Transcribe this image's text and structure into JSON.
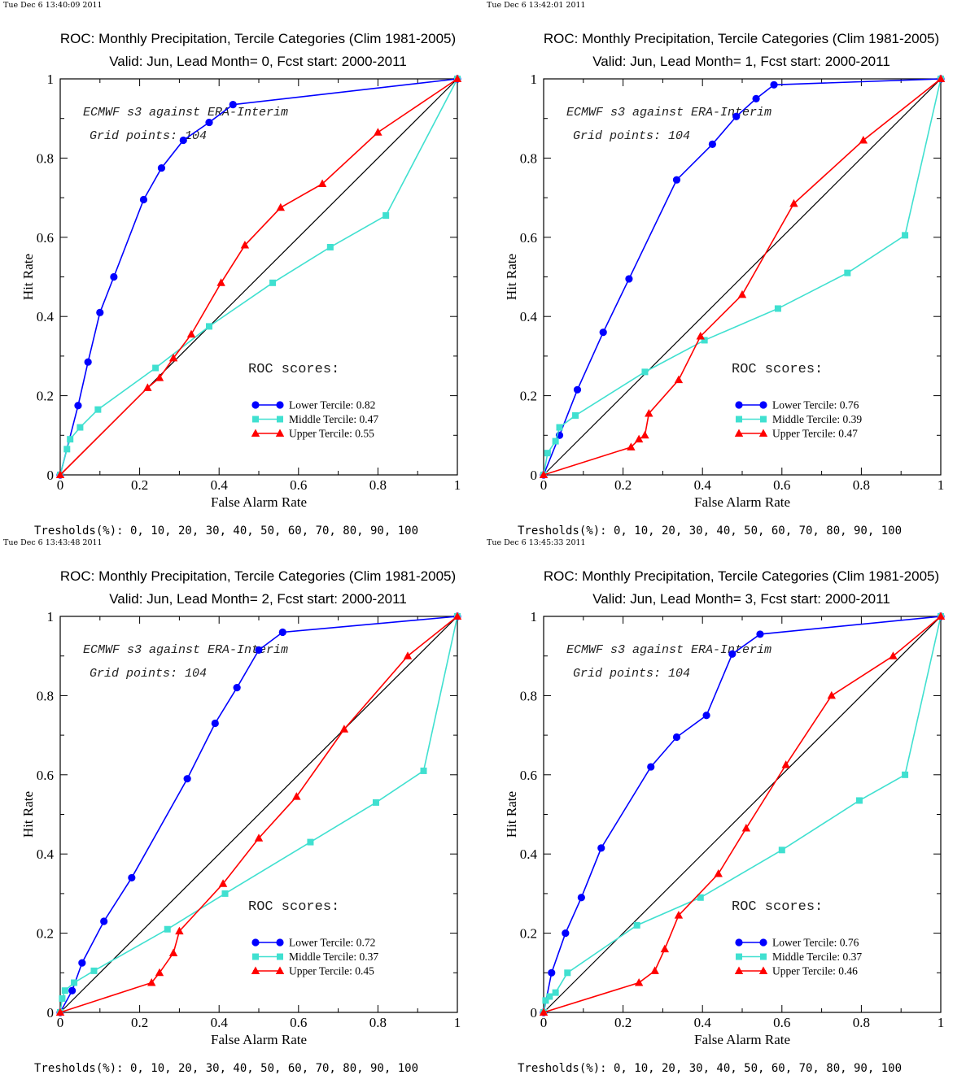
{
  "tresholds_label": "Tresholds(%): 0, 10, 20, 30, 40, 50, 60, 70, 80, 90, 100",
  "note_line1": "ECMWF s3 against ERA-Interim",
  "note_line2": "Grid points:  104",
  "roc_scores_label": "ROC scores:",
  "colors": {
    "lower": "#0000ff",
    "middle": "#40e0d0",
    "upper": "#ff0000",
    "diagonal": "#000000"
  },
  "chart_data": [
    {
      "type": "line",
      "timestamp": "Tue Dec  6 13:40:09 2011",
      "title": "ROC: Monthly Precipitation, Tercile Categories (Clim 1981-2005)",
      "subtitle": "Valid: Jun, Lead Month= 0, Fcst start: 2000-2011",
      "xlabel": "False Alarm Rate",
      "ylabel": "Hit Rate",
      "xlim": [
        0,
        1
      ],
      "ylim": [
        0,
        1
      ],
      "xticks": [
        "0",
        "0.2",
        "0.4",
        "0.6",
        "0.8",
        "1"
      ],
      "yticks": [
        "0",
        "0.2",
        "0.4",
        "0.6",
        "0.8",
        "1"
      ],
      "series": [
        {
          "name": "Lower Tercile: 0.82",
          "marker": "circle",
          "color": "#0000ff",
          "x": [
            0,
            0.045,
            0.07,
            0.1,
            0.135,
            0.21,
            0.255,
            0.31,
            0.375,
            0.435,
            1
          ],
          "y": [
            0,
            0.175,
            0.285,
            0.41,
            0.5,
            0.695,
            0.775,
            0.845,
            0.89,
            0.935,
            1
          ]
        },
        {
          "name": "Middle Tercile: 0.47",
          "marker": "square",
          "color": "#40e0d0",
          "x": [
            0,
            0.017,
            0.025,
            0.05,
            0.095,
            0.24,
            0.375,
            0.535,
            0.68,
            0.82,
            1
          ],
          "y": [
            0,
            0.065,
            0.09,
            0.12,
            0.165,
            0.27,
            0.375,
            0.485,
            0.575,
            0.655,
            1
          ]
        },
        {
          "name": "Upper Tercile: 0.55",
          "marker": "triangle",
          "color": "#ff0000",
          "x": [
            0,
            0.22,
            0.25,
            0.285,
            0.33,
            0.405,
            0.465,
            0.555,
            0.66,
            0.8,
            1
          ],
          "y": [
            0,
            0.22,
            0.245,
            0.295,
            0.355,
            0.485,
            0.58,
            0.675,
            0.735,
            0.865,
            1
          ]
        }
      ]
    },
    {
      "type": "line",
      "timestamp": "Tue Dec  6 13:42:01 2011",
      "title": "ROC: Monthly Precipitation, Tercile Categories (Clim 1981-2005)",
      "subtitle": "Valid: Jun, Lead Month= 1, Fcst start: 2000-2011",
      "xlabel": "False Alarm Rate",
      "ylabel": "Hit Rate",
      "xlim": [
        0,
        1
      ],
      "ylim": [
        0,
        1
      ],
      "xticks": [
        "0",
        "0.2",
        "0.4",
        "0.6",
        "0.8",
        "1"
      ],
      "yticks": [
        "0",
        "0.2",
        "0.4",
        "0.6",
        "0.8",
        "1"
      ],
      "series": [
        {
          "name": "Lower Tercile: 0.76",
          "marker": "circle",
          "color": "#0000ff",
          "x": [
            0,
            0.04,
            0.085,
            0.15,
            0.215,
            0.335,
            0.425,
            0.485,
            0.535,
            0.58,
            1
          ],
          "y": [
            0,
            0.1,
            0.215,
            0.36,
            0.495,
            0.745,
            0.835,
            0.905,
            0.95,
            0.985,
            1
          ]
        },
        {
          "name": "Middle Tercile: 0.39",
          "marker": "square",
          "color": "#40e0d0",
          "x": [
            0,
            0.01,
            0.03,
            0.04,
            0.08,
            0.255,
            0.405,
            0.59,
            0.765,
            0.91,
            1
          ],
          "y": [
            0,
            0.055,
            0.085,
            0.12,
            0.15,
            0.26,
            0.34,
            0.42,
            0.51,
            0.605,
            1
          ]
        },
        {
          "name": "Upper Tercile: 0.47",
          "marker": "triangle",
          "color": "#ff0000",
          "x": [
            0,
            0.22,
            0.24,
            0.255,
            0.265,
            0.34,
            0.395,
            0.5,
            0.63,
            0.805,
            1
          ],
          "y": [
            0,
            0.07,
            0.09,
            0.1,
            0.155,
            0.24,
            0.35,
            0.455,
            0.685,
            0.845,
            1
          ]
        }
      ]
    },
    {
      "type": "line",
      "timestamp": "Tue Dec  6 13:43:48 2011",
      "title": "ROC: Monthly Precipitation, Tercile Categories (Clim 1981-2005)",
      "subtitle": "Valid: Jun, Lead Month= 2, Fcst start: 2000-2011",
      "xlabel": "False Alarm Rate",
      "ylabel": "Hit Rate",
      "xlim": [
        0,
        1
      ],
      "ylim": [
        0,
        1
      ],
      "xticks": [
        "0",
        "0.2",
        "0.4",
        "0.6",
        "0.8",
        "1"
      ],
      "yticks": [
        "0",
        "0.2",
        "0.4",
        "0.6",
        "0.8",
        "1"
      ],
      "series": [
        {
          "name": "Lower Tercile: 0.72",
          "marker": "circle",
          "color": "#0000ff",
          "x": [
            0,
            0.03,
            0.055,
            0.11,
            0.18,
            0.32,
            0.39,
            0.445,
            0.5,
            0.56,
            1
          ],
          "y": [
            0,
            0.055,
            0.125,
            0.23,
            0.34,
            0.59,
            0.73,
            0.82,
            0.915,
            0.96,
            1
          ]
        },
        {
          "name": "Middle Tercile: 0.37",
          "marker": "square",
          "color": "#40e0d0",
          "x": [
            0,
            0.005,
            0.012,
            0.035,
            0.085,
            0.27,
            0.415,
            0.63,
            0.795,
            0.915,
            1
          ],
          "y": [
            0,
            0.035,
            0.055,
            0.075,
            0.105,
            0.21,
            0.3,
            0.43,
            0.53,
            0.61,
            1
          ]
        },
        {
          "name": "Upper Tercile: 0.45",
          "marker": "triangle",
          "color": "#ff0000",
          "x": [
            0,
            0.23,
            0.25,
            0.285,
            0.3,
            0.41,
            0.5,
            0.595,
            0.715,
            0.875,
            1
          ],
          "y": [
            0,
            0.075,
            0.1,
            0.15,
            0.205,
            0.325,
            0.44,
            0.545,
            0.715,
            0.9,
            1
          ]
        }
      ]
    },
    {
      "type": "line",
      "timestamp": "Tue Dec  6 13:45:33 2011",
      "title": "ROC: Monthly Precipitation, Tercile Categories (Clim 1981-2005)",
      "subtitle": "Valid: Jun, Lead Month= 3, Fcst start: 2000-2011",
      "xlabel": "False Alarm Rate",
      "ylabel": "Hit Rate",
      "xlim": [
        0,
        1
      ],
      "ylim": [
        0,
        1
      ],
      "xticks": [
        "0",
        "0.2",
        "0.4",
        "0.6",
        "0.8",
        "1"
      ],
      "yticks": [
        "0",
        "0.2",
        "0.4",
        "0.6",
        "0.8",
        "1"
      ],
      "series": [
        {
          "name": "Lower Tercile: 0.76",
          "marker": "circle",
          "color": "#0000ff",
          "x": [
            0,
            0.02,
            0.055,
            0.095,
            0.145,
            0.27,
            0.335,
            0.41,
            0.475,
            0.545,
            1
          ],
          "y": [
            0,
            0.1,
            0.2,
            0.29,
            0.415,
            0.62,
            0.695,
            0.75,
            0.905,
            0.955,
            1
          ]
        },
        {
          "name": "Middle Tercile: 0.37",
          "marker": "square",
          "color": "#40e0d0",
          "x": [
            0,
            0.005,
            0.015,
            0.03,
            0.06,
            0.235,
            0.395,
            0.6,
            0.795,
            0.91,
            1
          ],
          "y": [
            0,
            0.03,
            0.04,
            0.05,
            0.1,
            0.22,
            0.29,
            0.41,
            0.535,
            0.6,
            1
          ]
        },
        {
          "name": "Upper Tercile: 0.46",
          "marker": "triangle",
          "color": "#ff0000",
          "x": [
            0,
            0.24,
            0.28,
            0.305,
            0.34,
            0.44,
            0.51,
            0.61,
            0.725,
            0.88,
            1
          ],
          "y": [
            0,
            0.075,
            0.105,
            0.16,
            0.245,
            0.35,
            0.465,
            0.625,
            0.8,
            0.9,
            1
          ]
        }
      ]
    }
  ]
}
